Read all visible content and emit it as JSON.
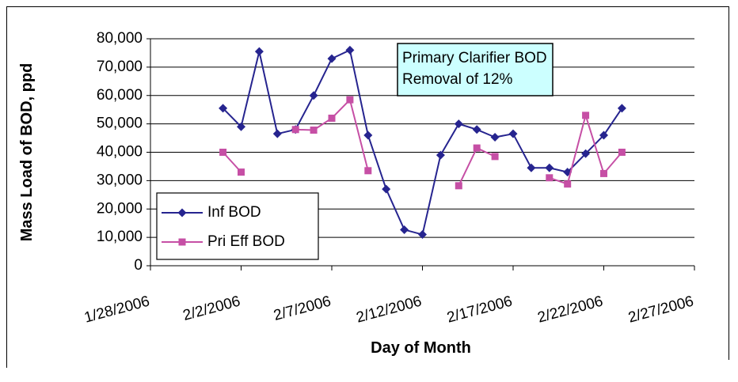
{
  "chart_data": {
    "type": "line",
    "xlabel": "Day of Month",
    "ylabel": "Mass Load of BOD, ppd",
    "annotation": [
      "Primary Clarifier BOD",
      "Removal of 12%"
    ],
    "x": [
      "2006-02-01",
      "2006-02-02",
      "2006-02-03",
      "2006-02-04",
      "2006-02-05",
      "2006-02-06",
      "2006-02-07",
      "2006-02-08",
      "2006-02-09",
      "2006-02-10",
      "2006-02-11",
      "2006-02-12",
      "2006-02-13",
      "2006-02-14",
      "2006-02-15",
      "2006-02-16",
      "2006-02-17",
      "2006-02-18",
      "2006-02-19",
      "2006-02-20",
      "2006-02-21",
      "2006-02-22",
      "2006-02-23"
    ],
    "series": [
      {
        "name": "Inf BOD",
        "color": "#26248f",
        "marker": "diamond",
        "values": [
          55500,
          49000,
          75500,
          46500,
          48000,
          60000,
          73000,
          76000,
          46000,
          27000,
          12700,
          11000,
          39000,
          50000,
          48000,
          45300,
          46500,
          34500,
          34500,
          33000,
          39500,
          46000,
          55500
        ]
      },
      {
        "name": "Pri Eff BOD",
        "color": "#c64fa5",
        "marker": "square",
        "values": [
          40000,
          33000,
          null,
          null,
          48000,
          47800,
          52000,
          58500,
          33500,
          null,
          null,
          null,
          null,
          28200,
          41500,
          38500,
          null,
          null,
          31000,
          28800,
          53000,
          32500,
          40000
        ]
      }
    ],
    "xlim": [
      "2006-01-28",
      "2006-02-27"
    ],
    "xticks": [
      {
        "value": "2006-01-28",
        "label": "1/28/2006"
      },
      {
        "value": "2006-02-02",
        "label": "2/2/2006"
      },
      {
        "value": "2006-02-07",
        "label": "2/7/2006"
      },
      {
        "value": "2006-02-12",
        "label": "2/12/2006"
      },
      {
        "value": "2006-02-17",
        "label": "2/17/2006"
      },
      {
        "value": "2006-02-22",
        "label": "2/22/2006"
      },
      {
        "value": "2006-02-27",
        "label": "2/27/2006"
      }
    ],
    "ylim": [
      0,
      80000
    ],
    "yticks": [
      0,
      {
        "value": 10000,
        "label": "10,000"
      },
      {
        "value": 20000,
        "label": "20,000"
      },
      {
        "value": 30000,
        "label": "30,000"
      },
      {
        "value": 40000,
        "label": "40,000"
      },
      {
        "value": 50000,
        "label": "50,000"
      },
      {
        "value": 60000,
        "label": "60,000"
      },
      {
        "value": 70000,
        "label": "70,000"
      },
      {
        "value": 80000,
        "label": "80,000"
      }
    ],
    "grid": true,
    "legend": "lower left"
  }
}
